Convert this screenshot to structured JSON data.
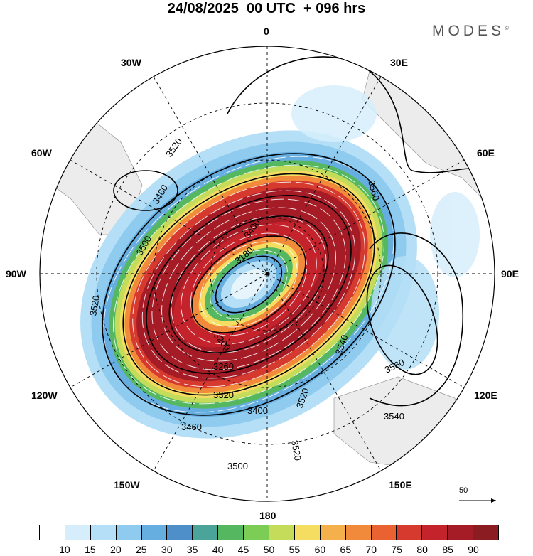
{
  "title": "24/08/2025  00 UTC  + 096 hrs",
  "brand": "MODES",
  "brand_mark": "©",
  "longitude_labels": {
    "lon0": "0",
    "lon30e": "30E",
    "lon60e": "60E",
    "lon90e": "90E",
    "lon120e": "120E",
    "lon150e": "150E",
    "lon180": "180",
    "lon150w": "150W",
    "lon120w": "120W",
    "lon90w": "90W",
    "lon60w": "60W",
    "lon30w": "30W"
  },
  "contour_labels": [
    "3520",
    "3460",
    "3400",
    "3500",
    "3520",
    "3560",
    "3180",
    "3200",
    "3260",
    "3320",
    "3400",
    "3460",
    "3500",
    "3520",
    "3540",
    "3560",
    "3540",
    "3520"
  ],
  "vector_reference": "50",
  "colorbar": {
    "colors": [
      "#ffffff",
      "#d6eefb",
      "#b4dff6",
      "#8ecbef",
      "#66aee0",
      "#4e8ec9",
      "#4ba49a",
      "#55b860",
      "#7ccd55",
      "#c5dc5b",
      "#f5dd62",
      "#f4b14b",
      "#f18a3a",
      "#eb6232",
      "#d63a2f",
      "#c4232c",
      "#a51c27",
      "#8b1c21"
    ],
    "ticks": [
      "10",
      "15",
      "20",
      "25",
      "30",
      "35",
      "40",
      "45",
      "50",
      "55",
      "60",
      "65",
      "70",
      "75",
      "80",
      "85",
      "90"
    ]
  }
}
